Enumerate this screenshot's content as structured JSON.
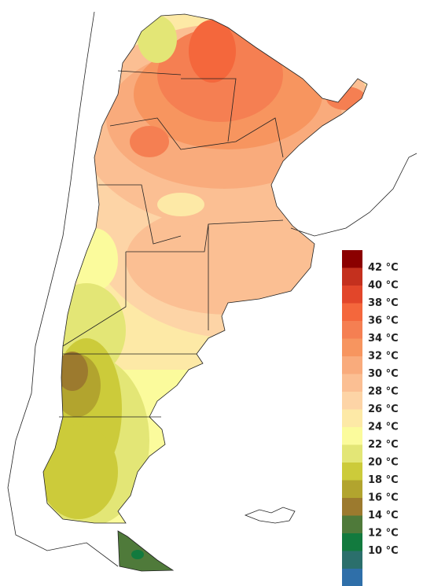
{
  "legend": {
    "labels": [
      "42 °C",
      "40 °C",
      "38 °C",
      "36 °C",
      "34 °C",
      "32 °C",
      "30 °C",
      "28 °C",
      "26 °C",
      "24 °C",
      "22 °C",
      "20 °C",
      "18 °C",
      "16 °C",
      "14 °C",
      "12 °C",
      "10 °C"
    ],
    "colors": [
      "#8b0000",
      "#c4301e",
      "#e2462a",
      "#f4673c",
      "#f57f52",
      "#f7955f",
      "#f9ab7c",
      "#fbbf93",
      "#fdd4a6",
      "#fde9a6",
      "#fbfb9c",
      "#e3e676",
      "#cccb3a",
      "#b2a42e",
      "#9c7a2e",
      "#4f7a3a",
      "#127a3e",
      "#2b6f6c",
      "#2f6fa9",
      "#888888"
    ]
  }
}
